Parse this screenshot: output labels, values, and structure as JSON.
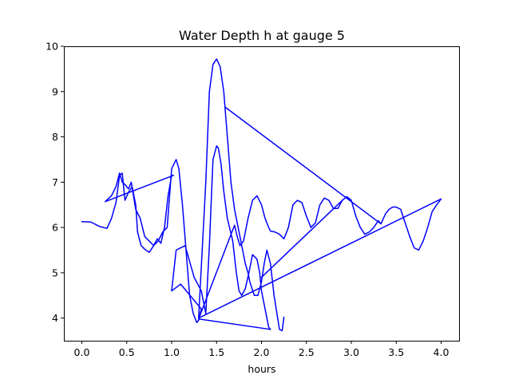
{
  "chart_data": {
    "type": "line",
    "title": "Water Depth h at gauge 5",
    "xlabel": "hours",
    "ylabel": "",
    "xlim": [
      -0.2,
      4.2
    ],
    "ylim": [
      3.5,
      10.0
    ],
    "xticks": [
      0.0,
      0.5,
      1.0,
      1.5,
      2.0,
      2.5,
      3.0,
      3.5,
      4.0
    ],
    "xtick_labels": [
      "0.0",
      "0.5",
      "1.0",
      "1.5",
      "2.0",
      "2.5",
      "3.0",
      "3.5",
      "4.0"
    ],
    "yticks": [
      4,
      5,
      6,
      7,
      8,
      9,
      10
    ],
    "ytick_labels": [
      "4",
      "5",
      "6",
      "7",
      "8",
      "9",
      "10"
    ],
    "grid": false,
    "legend": false,
    "series": [
      {
        "color": "#0000ff",
        "x": [
          0.0,
          0.1,
          0.2,
          0.28,
          0.33,
          0.38,
          0.42,
          0.45,
          0.48,
          0.52,
          0.56,
          0.6,
          0.62,
          0.66,
          0.7,
          0.75,
          0.8,
          0.84,
          0.88,
          0.92,
          0.96,
          1.0,
          1.02,
          0.26,
          0.33,
          0.38,
          0.42,
          0.45,
          0.48,
          0.52,
          0.55,
          0.6,
          0.65,
          0.7,
          0.75,
          0.8,
          0.85,
          0.9,
          0.95,
          1.0,
          1.05,
          1.08,
          1.12,
          1.16,
          1.2,
          1.24,
          1.28,
          1.3,
          1.33,
          1.1,
          1.0,
          1.05,
          1.15,
          1.25,
          1.33,
          1.38,
          1.42,
          1.46,
          1.5,
          1.52,
          1.55,
          1.58,
          1.62,
          1.68,
          1.72,
          1.75,
          1.78,
          1.82,
          1.86,
          1.9,
          1.95,
          1.98,
          2.0,
          2.05,
          2.08,
          2.1,
          1.3,
          1.7,
          1.73,
          1.76,
          1.8,
          1.85,
          1.9,
          1.95,
          2.0,
          2.04,
          2.08,
          2.1,
          2.15,
          2.2,
          2.25,
          2.3,
          2.35,
          2.4,
          2.45,
          2.5,
          2.55,
          2.6,
          2.65,
          2.7,
          2.75,
          2.8,
          2.85,
          2.9,
          2.0,
          2.9,
          2.95,
          3.0,
          3.05,
          3.1,
          3.15,
          3.2,
          3.25,
          3.3,
          3.33,
          1.6,
          3.33,
          3.38,
          3.42,
          3.46,
          3.5,
          3.55,
          3.6,
          3.65,
          3.7,
          3.75,
          3.8,
          3.85,
          3.9,
          3.95,
          4.0,
          1.3,
          1.38,
          1.42,
          1.46,
          1.5,
          1.54,
          1.58,
          1.62,
          1.66,
          1.7,
          1.74,
          1.78,
          1.82,
          1.85,
          1.87,
          1.92,
          1.96,
          2.0,
          2.03,
          2.06,
          2.1,
          2.14,
          2.18,
          2.2,
          2.23,
          2.25
        ],
        "y": [
          6.13,
          6.12,
          6.02,
          5.98,
          6.2,
          6.55,
          7.15,
          7.2,
          6.6,
          6.78,
          6.9,
          6.5,
          5.9,
          5.6,
          5.52,
          5.45,
          5.6,
          5.75,
          5.65,
          6.0,
          6.7,
          7.15,
          7.15,
          6.57,
          6.7,
          6.9,
          7.2,
          7.0,
          6.95,
          6.85,
          7.0,
          6.4,
          6.2,
          5.8,
          5.7,
          5.6,
          5.7,
          5.9,
          6.0,
          7.3,
          7.5,
          7.3,
          6.5,
          5.5,
          4.5,
          4.1,
          3.9,
          3.95,
          4.2,
          4.75,
          4.6,
          5.5,
          5.6,
          4.9,
          4.6,
          4.1,
          5.6,
          7.5,
          7.8,
          7.75,
          7.4,
          6.8,
          6.2,
          5.7,
          5.0,
          4.6,
          4.5,
          4.65,
          5.0,
          5.4,
          5.3,
          5.0,
          4.6,
          4.1,
          3.8,
          3.75,
          3.98,
          6.05,
          5.8,
          5.6,
          5.7,
          6.2,
          6.6,
          6.7,
          6.5,
          6.2,
          6.0,
          5.92,
          5.9,
          5.85,
          5.75,
          6.0,
          6.5,
          6.6,
          6.55,
          6.25,
          6.0,
          6.1,
          6.5,
          6.65,
          6.6,
          6.42,
          6.42,
          6.6,
          4.9,
          6.6,
          6.68,
          6.6,
          6.25,
          6.0,
          5.85,
          5.9,
          6.0,
          6.15,
          6.08,
          8.65,
          6.08,
          6.3,
          6.4,
          6.45,
          6.45,
          6.4,
          6.1,
          5.8,
          5.55,
          5.5,
          5.7,
          6.0,
          6.35,
          6.5,
          6.63,
          4.0,
          7.0,
          9.0,
          9.6,
          9.72,
          9.55,
          9.0,
          8.0,
          7.0,
          6.4,
          6.0,
          5.6,
          5.2,
          5.0,
          4.8,
          4.5,
          4.5,
          4.8,
          5.2,
          5.5,
          5.2,
          4.5,
          4.0,
          3.75,
          3.72,
          4.02
        ]
      }
    ]
  }
}
